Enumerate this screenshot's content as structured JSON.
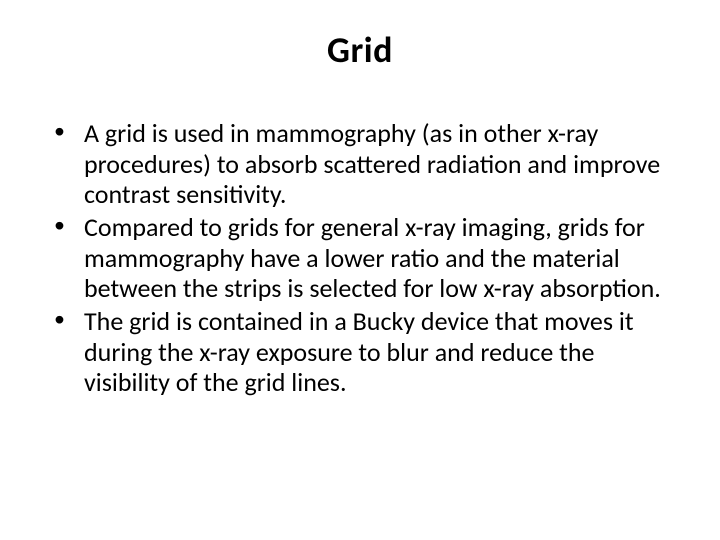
{
  "slide": {
    "title": "Grid",
    "title_fontsize": 36,
    "title_fontweight": 700,
    "body_fontsize": 26,
    "text_color": "#000000",
    "background_color": "#ffffff",
    "bullets": [
      " A grid is used in mammography (as in other x-ray procedures) to absorb scattered radiation and improve contrast sensitivity.",
      " Compared to grids for general x-ray imaging, grids for mammography have a lower ratio and the material between the strips is selected for low x-ray absorption.",
      "The grid is contained in a Bucky device that moves it during the x-ray exposure to blur and reduce the visibility of the grid lines."
    ]
  }
}
